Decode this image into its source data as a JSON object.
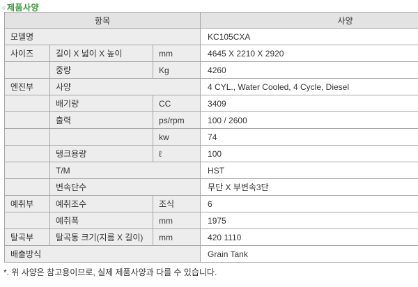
{
  "page": {
    "title_bullet": "○",
    "title": "제품사양",
    "footnote": "*. 위 사양은 참고용이므로, 실제 제품사양과 다를 수 있습니다."
  },
  "colors": {
    "accent_green": "#3c9a3c",
    "header_bg": "#e3e3e3",
    "label_bg": "#ededed",
    "border": "#a6a6a6",
    "text": "#333333"
  },
  "table": {
    "headers": {
      "item": "항목",
      "spec": "사양"
    },
    "rows": [
      {
        "cat": "모델명",
        "cat_span": 3,
        "value": "KC105CXA"
      },
      {
        "cat": "사이즈",
        "sub": "길이 X 넓이 X 높이",
        "unit": "mm",
        "value": "4645 X 2210 X 2920"
      },
      {
        "cat": "",
        "sub": "중량",
        "unit": "Kg",
        "value": "4260"
      },
      {
        "cat": "엔진부",
        "sub": "사양",
        "sub_span": 2,
        "value": "4 CYL., Water Cooled, 4 Cycle, Diesel"
      },
      {
        "cat": "",
        "sub": "배기량",
        "unit": "CC",
        "value": "3409"
      },
      {
        "cat": "",
        "sub": "출력",
        "unit": "ps/rpm",
        "value": "100 / 2600"
      },
      {
        "cat": "",
        "sub": "",
        "unit": "kw",
        "value": "74"
      },
      {
        "cat": "",
        "sub": "탱크용량",
        "unit": "ℓ",
        "value": "100"
      },
      {
        "cat": "",
        "sub": "T/M",
        "sub_span": 2,
        "value": "HST"
      },
      {
        "cat": "",
        "sub": "변속단수",
        "sub_span": 2,
        "value": "무단 X 부변속3단"
      },
      {
        "cat": "예취부",
        "sub": "예취조수",
        "unit": "조식",
        "value": "6"
      },
      {
        "cat": "",
        "sub": "예취폭",
        "unit": "mm",
        "value": "1975"
      },
      {
        "cat": "탈곡부",
        "sub": "탈곡통 크기(지름 X 길이)",
        "unit": "mm",
        "value": "420 1110"
      },
      {
        "cat": "배출방식",
        "cat_span": 3,
        "value": "Grain Tank"
      }
    ]
  }
}
